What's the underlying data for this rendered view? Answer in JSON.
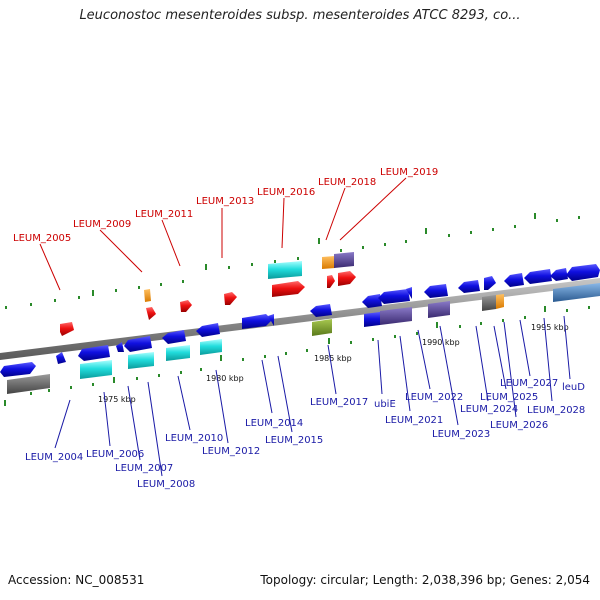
{
  "title": "Leuconostoc mesenteroides subsp. mesenteroides ATCC 8293, co...",
  "footer": {
    "accession": "Accession: NC_008531",
    "info": "Topology: circular; Length: 2,038,396 bp; Genes: 2,054"
  },
  "colors": {
    "backbone": "#8a8a8a",
    "gene_blue": "#1010e0",
    "gene_red": "#ee1111",
    "gene_cyan": "#22dddd",
    "gene_orange": "#f59a1a",
    "gene_purple": "#5a4a9a",
    "gene_gray": "#6b6b6b",
    "gene_olive": "#7a9a2a",
    "gene_steel": "#4a86c0",
    "tick": "#2a8a2a",
    "label_red": "#cc0000",
    "label_blue": "#1a1aa6"
  },
  "scale_labels": [
    "1975 kbp",
    "1980 kbp",
    "1985 kbp",
    "1990 kbp",
    "1995 kbp"
  ],
  "labels_top": [
    "LEUM_2005",
    "LEUM_2009",
    "LEUM_2011",
    "LEUM_2013",
    "LEUM_2016",
    "LEUM_2018",
    "LEUM_2019"
  ],
  "labels_bottom": [
    "LEUM_2004",
    "LEUM_2006",
    "LEUM_2007",
    "LEUM_2008",
    "LEUM_2010",
    "LEUM_2012",
    "LEUM_2014",
    "LEUM_2015",
    "LEUM_2017",
    "ubiE",
    "LEUM_2021",
    "LEUM_2022",
    "LEUM_2023",
    "LEUM_2024",
    "LEUM_2025",
    "LEUM_2026",
    "LEUM_2027",
    "LEUM_2028",
    "leuD"
  ]
}
